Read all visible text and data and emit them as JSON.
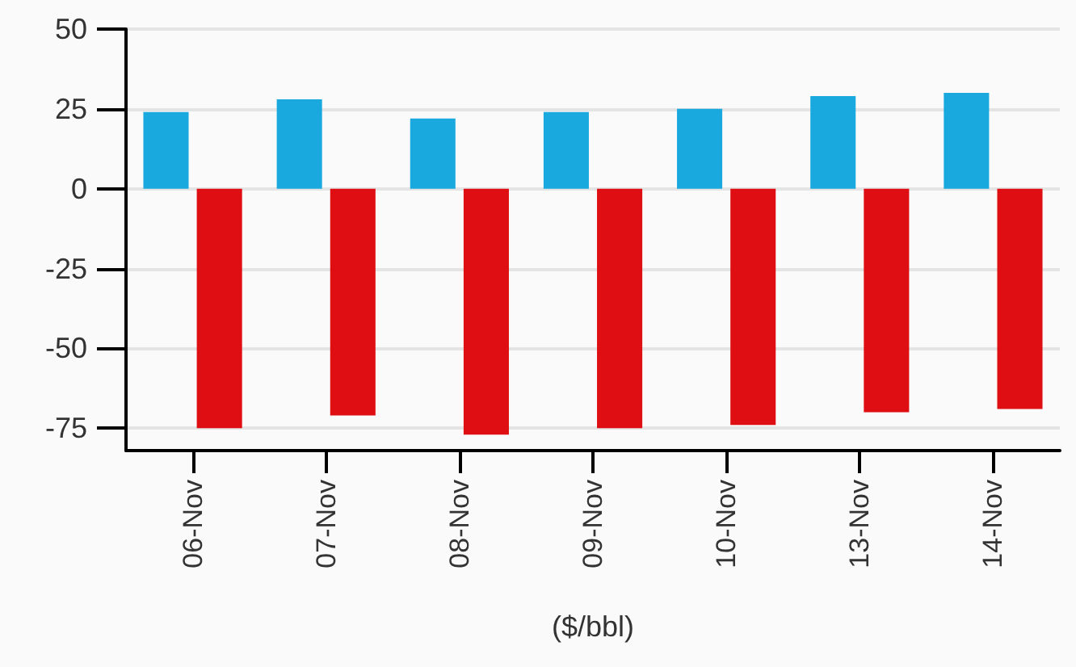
{
  "chart_data": {
    "type": "bar",
    "xlabel": "($/bbl)",
    "categories": [
      "06-Nov",
      "07-Nov",
      "08-Nov",
      "09-Nov",
      "10-Nov",
      "13-Nov",
      "14-Nov"
    ],
    "series": [
      {
        "color": "#1aa9de",
        "values": [
          24,
          28,
          22,
          24,
          25,
          29,
          30
        ]
      },
      {
        "color": "#de0e12",
        "values": [
          -75,
          -71,
          -77,
          -75,
          -74,
          -70,
          -69
        ]
      }
    ],
    "ylim": [
      -82,
      50
    ],
    "yticks": [
      -75,
      -50,
      -25,
      0,
      25,
      50
    ],
    "grid": "y"
  }
}
